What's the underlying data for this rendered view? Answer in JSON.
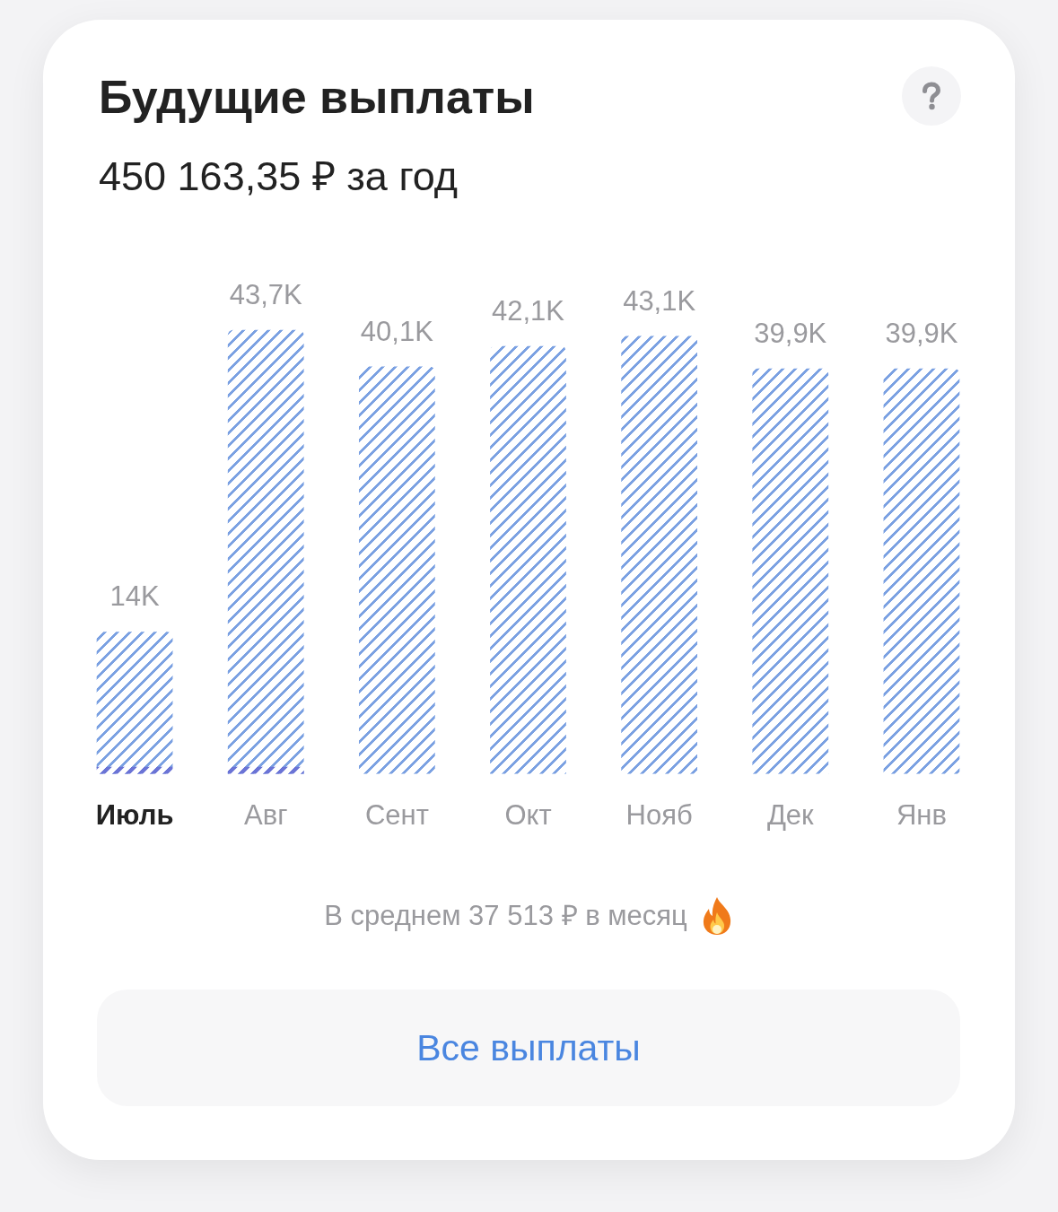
{
  "chart_data": {
    "type": "bar",
    "title": "Будущие выплаты",
    "subtitle": "450 163,35 ₽ за год",
    "categories": [
      "Июль",
      "Авг",
      "Сент",
      "Окт",
      "Нояб",
      "Дек",
      "Янв"
    ],
    "series": [
      {
        "color": "#7ba1e2",
        "values": [
          14,
          43.7,
          40.1,
          42.1,
          43.1,
          39.9,
          39.9
        ],
        "value_labels": [
          "14K",
          "43,7K",
          "40,1K",
          "42,1K",
          "43,1K",
          "39,9K",
          "39,9K"
        ]
      },
      {
        "color": "#6b74d6",
        "values": [
          0.7,
          0.7,
          null,
          null,
          null,
          null,
          null
        ]
      }
    ],
    "annotations": [
      "В среднем 37 513 ₽ в месяц",
      "Все выплаты"
    ]
  }
}
